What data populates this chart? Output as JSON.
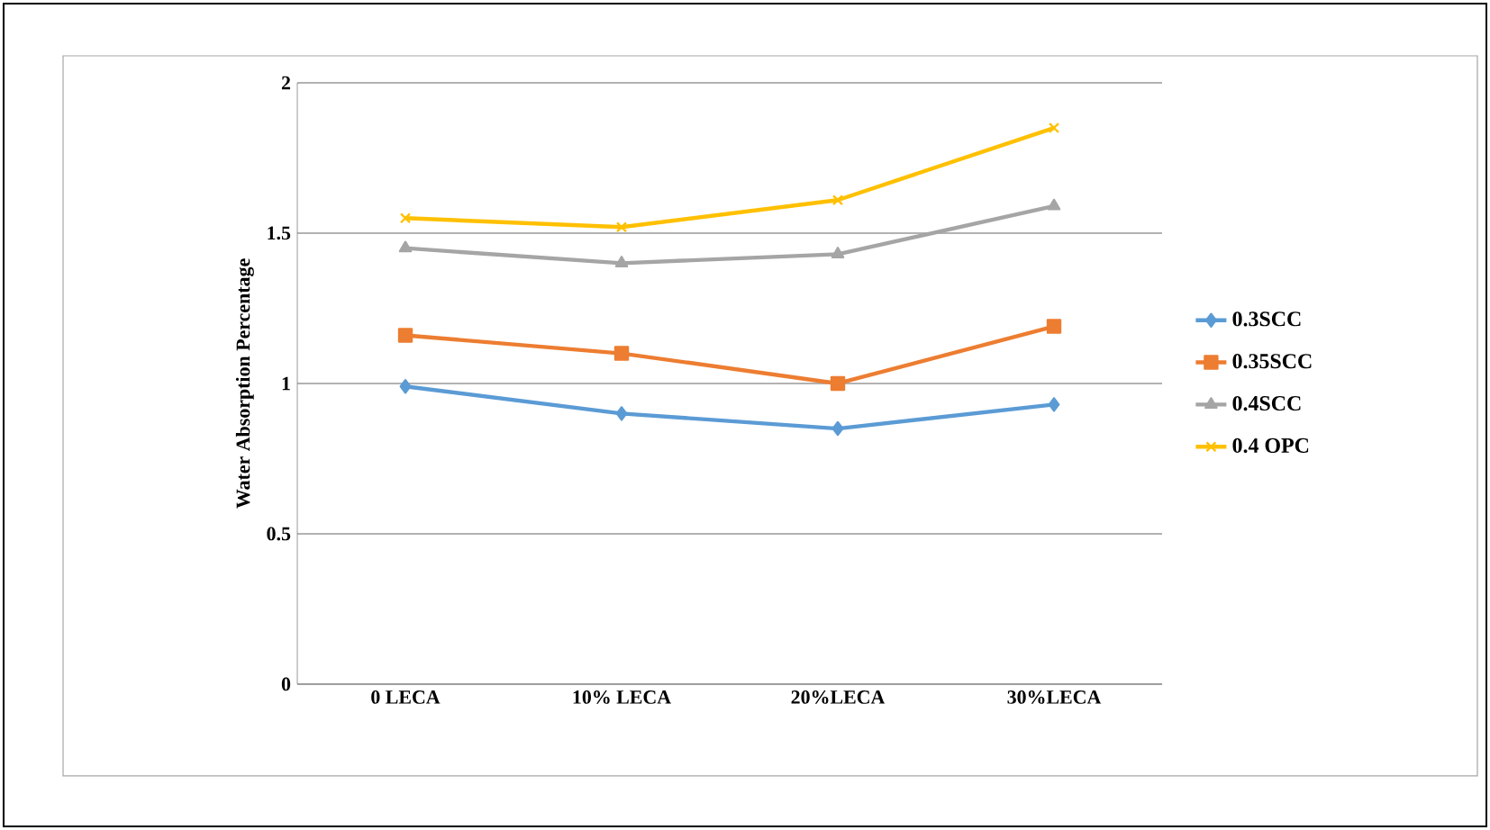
{
  "chart_data": {
    "type": "line",
    "ylabel": "Water Absorption Percentage",
    "categories": [
      "0 LECA",
      "10% LECA",
      "20%LECA",
      "30%LECA"
    ],
    "series": [
      {
        "name": "0.3SCC",
        "color": "#5b9bd5",
        "marker": "diamond",
        "values": [
          0.99,
          0.9,
          0.85,
          0.93
        ]
      },
      {
        "name": "0.35SCC",
        "color": "#ed7d31",
        "marker": "square",
        "values": [
          1.16,
          1.1,
          1.0,
          1.19
        ]
      },
      {
        "name": "0.4SCC",
        "color": "#a5a5a5",
        "marker": "triangle",
        "values": [
          1.45,
          1.4,
          1.43,
          1.59
        ]
      },
      {
        "name": "0.4 OPC",
        "color": "#ffc000",
        "marker": "cross",
        "values": [
          1.55,
          1.52,
          1.61,
          1.85
        ]
      }
    ],
    "ylim": [
      0,
      2
    ],
    "yticks": [
      0,
      0.5,
      1,
      1.5,
      2
    ],
    "grid": "y",
    "legend": "right"
  }
}
